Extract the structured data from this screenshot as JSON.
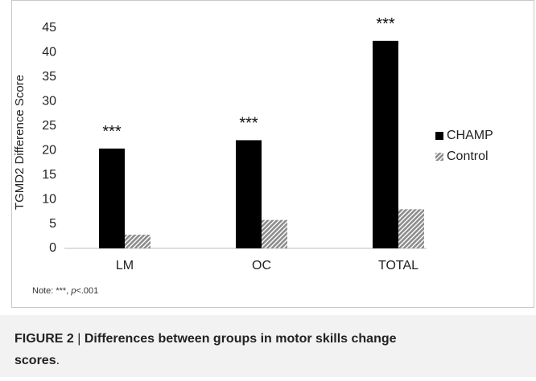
{
  "chart_data": {
    "type": "bar",
    "ylabel": "TGMD2 Difference Score",
    "categories": [
      "LM",
      "OC",
      "TOTAL"
    ],
    "series": [
      {
        "name": "CHAMP",
        "color": "#000000",
        "values": [
          20.4,
          22.1,
          42.4
        ]
      },
      {
        "name": "Control",
        "color": "#8c8c8c",
        "values": [
          2.8,
          5.8,
          8.0
        ]
      }
    ],
    "annotations": [
      "***",
      "***",
      "***"
    ],
    "ylim": [
      0,
      45
    ],
    "yticks": [
      0,
      5,
      10,
      15,
      20,
      25,
      30,
      35,
      40,
      45
    ],
    "legend": "right",
    "note": [
      "Note: ***, ",
      "p",
      "<.001"
    ]
  },
  "caption": [
    "FIGURE 2",
    "|",
    "Differences between groups in motor skills change scores",
    "."
  ]
}
